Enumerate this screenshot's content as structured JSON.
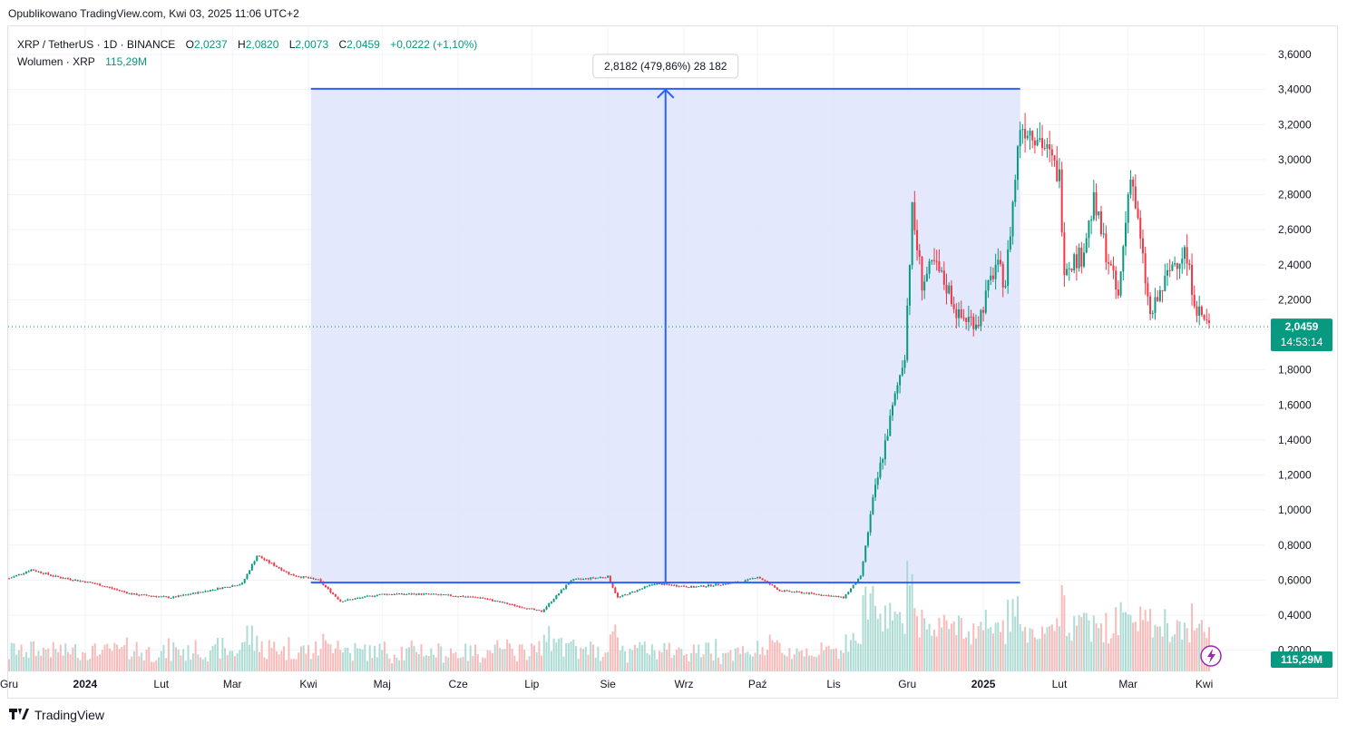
{
  "header": {
    "published": "Opublikowano TradingView.com, Kwi 03, 2025 11:06 UTC+2"
  },
  "legend": {
    "symbol": "XRP / TetherUS · 1D · BINANCE",
    "o_label": "O",
    "o": "2,0237",
    "h_label": "H",
    "h": "2,0820",
    "l_label": "L",
    "l": "2,0073",
    "c_label": "C",
    "c": "2,0459",
    "change": "+0,0222 (+1,10%)",
    "volume_label": "Wolumen · XRP",
    "volume_value": "115,29M"
  },
  "footer": {
    "brand": "TradingView",
    "logo_icon": "tradingview-logo-icon"
  },
  "colors": {
    "up": "#089981",
    "down": "#f23645",
    "measure": "#2962ff",
    "measure_fill": "#e0e6fc",
    "price_tag": "#089981"
  },
  "chart_data": {
    "type": "candlestick",
    "symbol": "XRP / TetherUS",
    "interval": "1D",
    "exchange": "BINANCE",
    "x_ticks": [
      "Gru",
      "2024",
      "Lut",
      "Mar",
      "Kwi",
      "Maj",
      "Cze",
      "Lip",
      "Sie",
      "Wrz",
      "Paź",
      "Lis",
      "Gru",
      "2025",
      "Lut",
      "Mar",
      "Kwi"
    ],
    "y_ticks": [
      "3,6000",
      "3,4000",
      "3,2000",
      "3,0000",
      "2,8000",
      "2,6000",
      "2,4000",
      "2,2000",
      "1,8000",
      "1,6000",
      "1,4000",
      "1,2000",
      "1,0000",
      "0,8000",
      "0,6000",
      "0,4000",
      "0,2000"
    ],
    "y_range": [
      0.0,
      3.7
    ],
    "x_range": [
      "2023-12-01",
      "2025-04-03"
    ],
    "price_path": [
      {
        "date": "2023-12-01",
        "price": 0.61
      },
      {
        "date": "2023-12-10",
        "price": 0.66
      },
      {
        "date": "2023-12-20",
        "price": 0.62
      },
      {
        "date": "2024-01-05",
        "price": 0.58
      },
      {
        "date": "2024-01-20",
        "price": 0.52
      },
      {
        "date": "2024-02-05",
        "price": 0.5
      },
      {
        "date": "2024-02-20",
        "price": 0.54
      },
      {
        "date": "2024-03-05",
        "price": 0.58
      },
      {
        "date": "2024-03-11",
        "price": 0.74
      },
      {
        "date": "2024-03-25",
        "price": 0.63
      },
      {
        "date": "2024-04-05",
        "price": 0.6
      },
      {
        "date": "2024-04-14",
        "price": 0.48
      },
      {
        "date": "2024-05-01",
        "price": 0.52
      },
      {
        "date": "2024-05-20",
        "price": 0.52
      },
      {
        "date": "2024-06-10",
        "price": 0.5
      },
      {
        "date": "2024-07-05",
        "price": 0.42
      },
      {
        "date": "2024-07-17",
        "price": 0.6
      },
      {
        "date": "2024-08-01",
        "price": 0.62
      },
      {
        "date": "2024-08-05",
        "price": 0.5
      },
      {
        "date": "2024-08-20",
        "price": 0.58
      },
      {
        "date": "2024-09-05",
        "price": 0.56
      },
      {
        "date": "2024-09-25",
        "price": 0.59
      },
      {
        "date": "2024-10-01",
        "price": 0.62
      },
      {
        "date": "2024-10-10",
        "price": 0.54
      },
      {
        "date": "2024-10-25",
        "price": 0.52
      },
      {
        "date": "2024-11-05",
        "price": 0.5
      },
      {
        "date": "2024-11-12",
        "price": 0.62
      },
      {
        "date": "2024-11-17",
        "price": 1.05
      },
      {
        "date": "2024-11-23",
        "price": 1.45
      },
      {
        "date": "2024-11-30",
        "price": 1.9
      },
      {
        "date": "2024-12-03",
        "price": 2.7
      },
      {
        "date": "2024-12-07",
        "price": 2.3
      },
      {
        "date": "2024-12-12",
        "price": 2.4
      },
      {
        "date": "2024-12-18",
        "price": 2.25
      },
      {
        "date": "2024-12-22",
        "price": 2.1
      },
      {
        "date": "2024-12-30",
        "price": 2.08
      },
      {
        "date": "2025-01-06",
        "price": 2.4
      },
      {
        "date": "2025-01-10",
        "price": 2.3
      },
      {
        "date": "2025-01-16",
        "price": 3.2
      },
      {
        "date": "2025-01-23",
        "price": 3.15
      },
      {
        "date": "2025-02-01",
        "price": 2.9
      },
      {
        "date": "2025-02-03",
        "price": 2.4
      },
      {
        "date": "2025-02-10",
        "price": 2.45
      },
      {
        "date": "2025-02-15",
        "price": 2.75
      },
      {
        "date": "2025-02-25",
        "price": 2.2
      },
      {
        "date": "2025-03-02",
        "price": 2.95
      },
      {
        "date": "2025-03-10",
        "price": 2.1
      },
      {
        "date": "2025-03-19",
        "price": 2.4
      },
      {
        "date": "2025-03-24",
        "price": 2.48
      },
      {
        "date": "2025-03-29",
        "price": 2.15
      },
      {
        "date": "2025-04-03",
        "price": 2.0459
      }
    ],
    "measurement": {
      "start_date": "2024-04-02",
      "end_date": "2025-01-16",
      "low_price": 0.5857,
      "high_price": 3.4039,
      "label": "2,8182 (479,86%) 28 182"
    },
    "last_price_label": "2,0459",
    "countdown_label": "14:53:14",
    "last_volume_label": "115,29M"
  }
}
